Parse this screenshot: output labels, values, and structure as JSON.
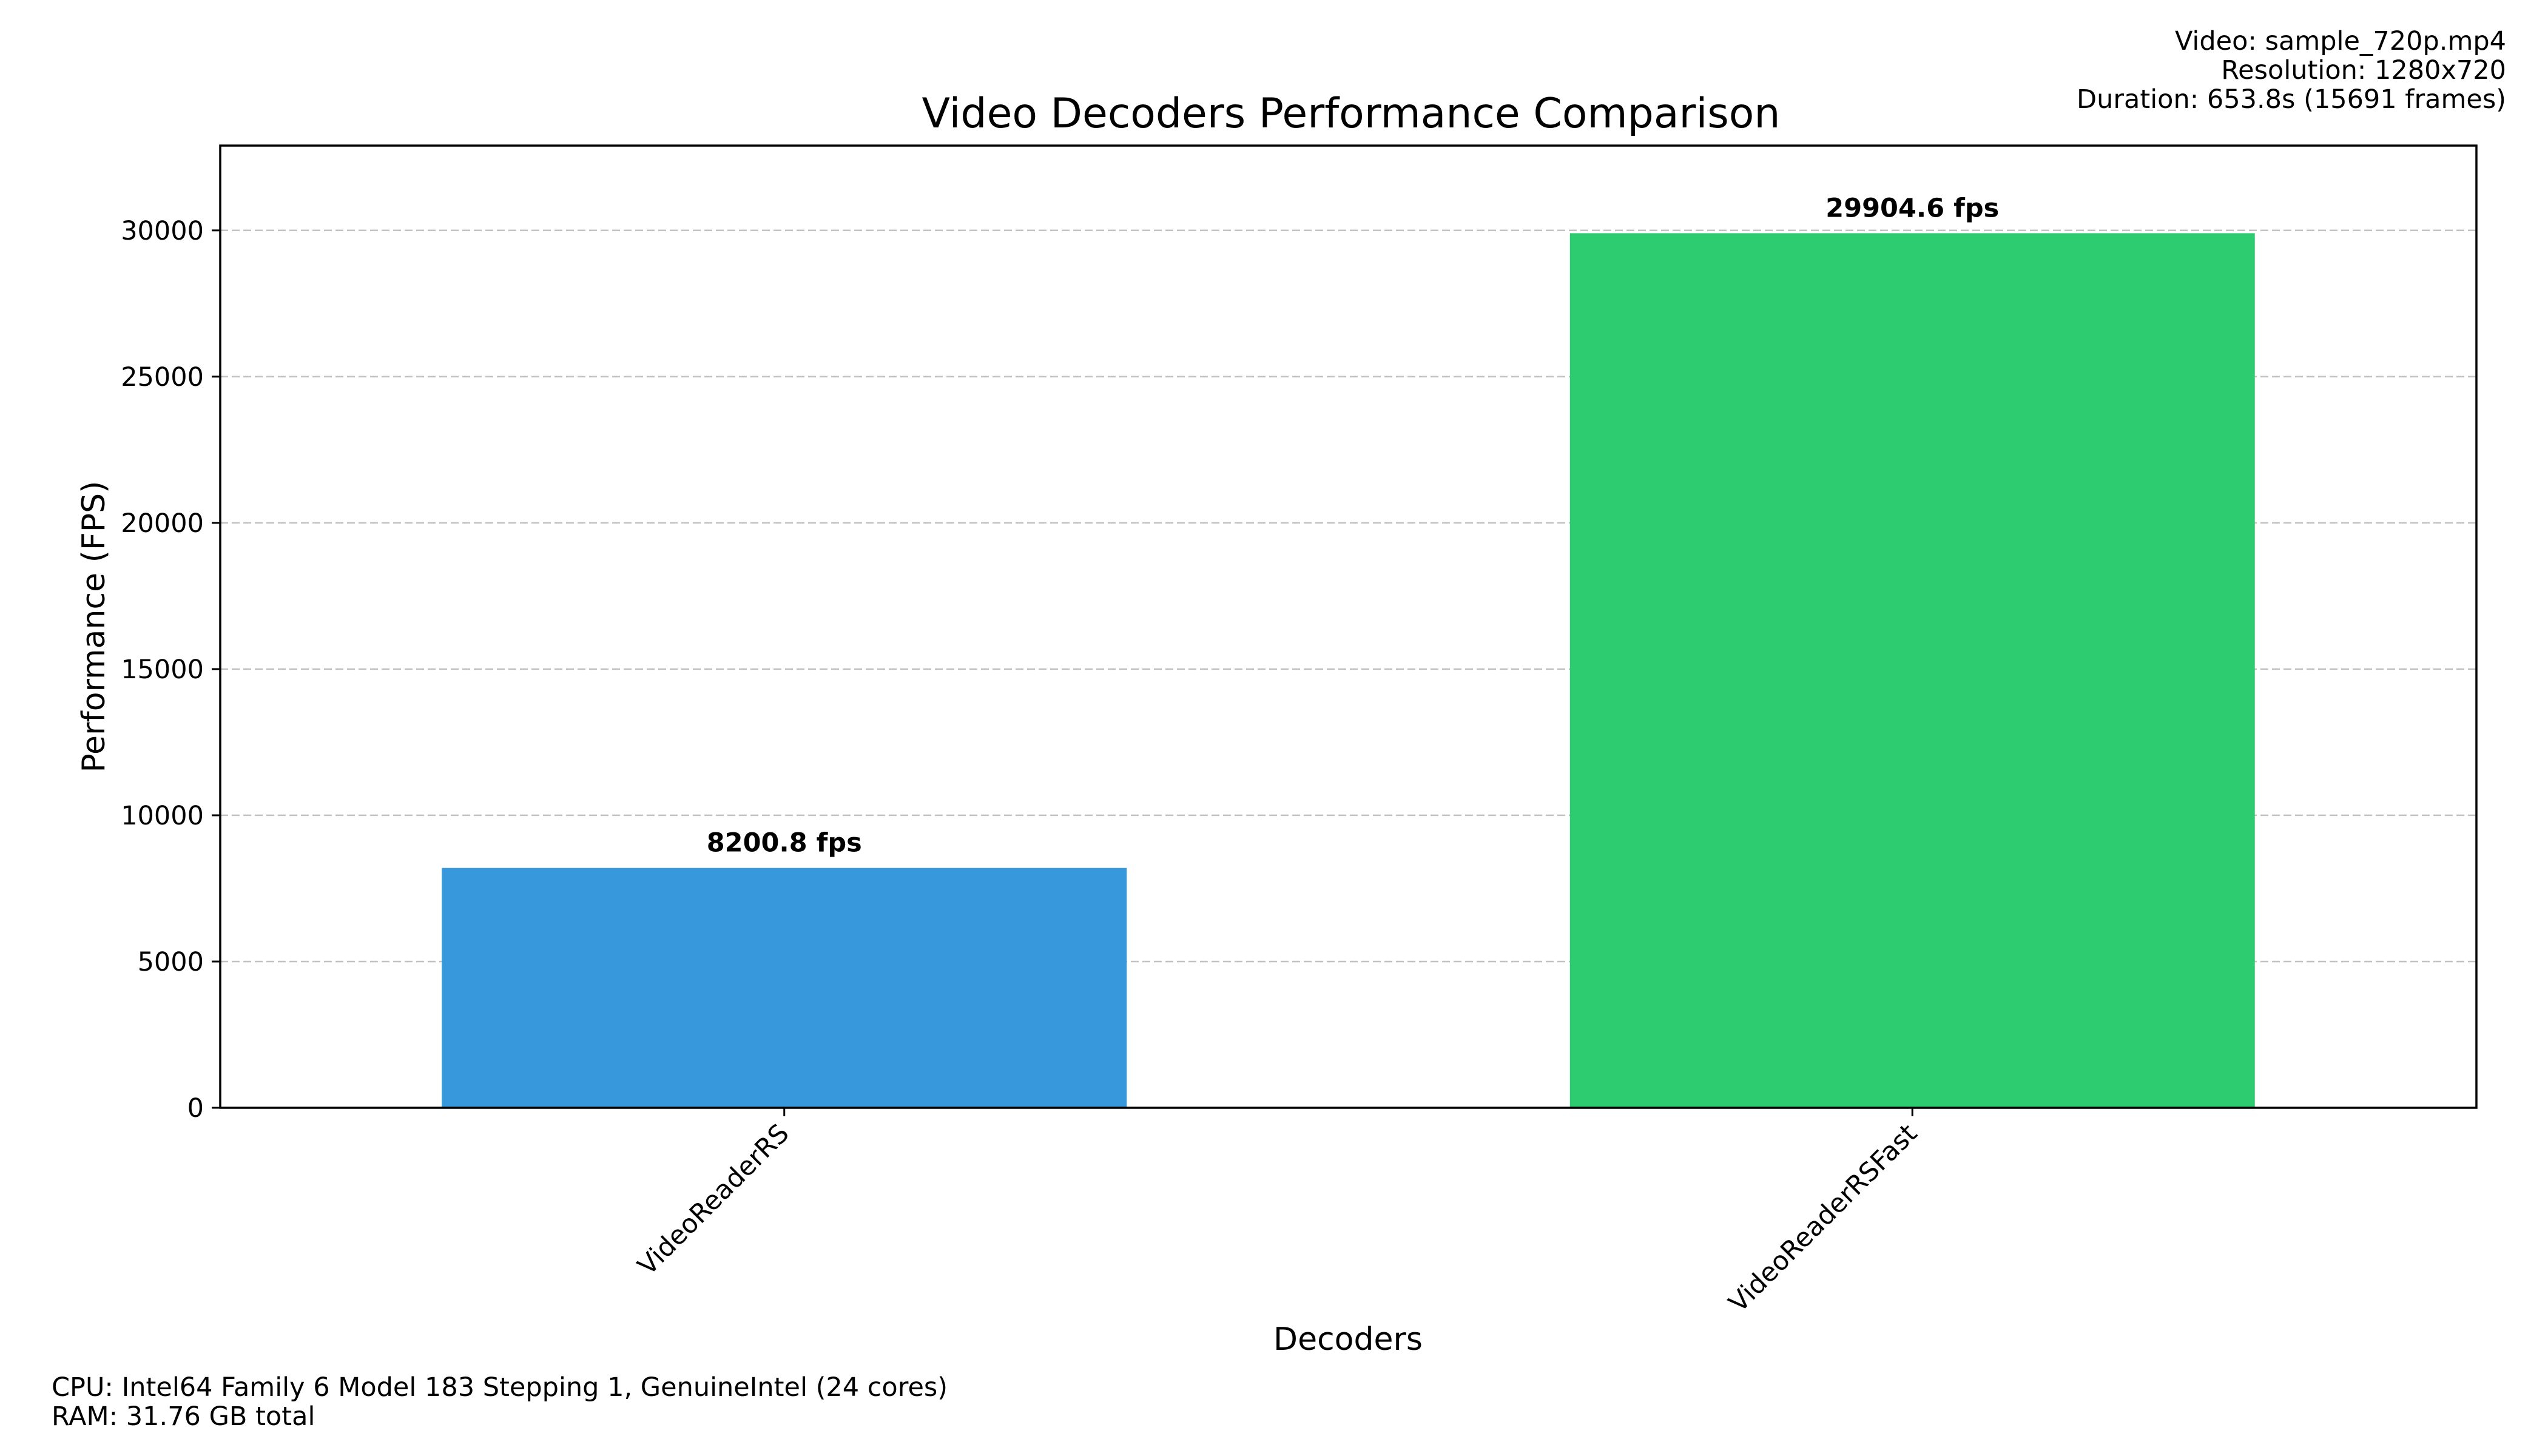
{
  "video_info": {
    "video": "Video: sample_720p.mp4",
    "resolution": "Resolution: 1280x720",
    "duration": "Duration: 653.8s (15691 frames)"
  },
  "system_info": {
    "cpu": "CPU: Intel64 Family 6 Model 183 Stepping 1, GenuineIntel (24 cores)",
    "ram": "RAM: 31.76 GB total"
  },
  "chart_data": {
    "type": "bar",
    "title": "Video Decoders Performance Comparison",
    "xlabel": "Decoders",
    "ylabel": "Performance (FPS)",
    "categories": [
      "VideoReaderRS",
      "VideoReaderRSFast"
    ],
    "values": [
      8200.8,
      29904.6
    ],
    "value_labels": [
      "8200.8 fps",
      "29904.6 fps"
    ],
    "colors": [
      "#3798db",
      "#2ecc71"
    ],
    "ylim": [
      0,
      32900
    ],
    "yticks": [
      0,
      5000,
      10000,
      15000,
      20000,
      25000,
      30000
    ],
    "grid": "y-dashed",
    "legend": "none"
  }
}
